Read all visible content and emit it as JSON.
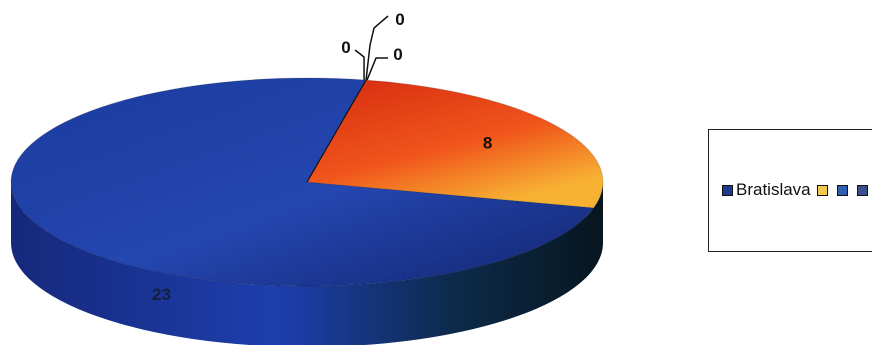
{
  "chart_data": {
    "type": "pie",
    "style": "3d",
    "categories": [
      "Bratislava",
      "",
      "",
      ""
    ],
    "values": [
      23,
      8,
      0,
      0
    ],
    "data_labels": [
      "23",
      "8",
      "0",
      "0"
    ],
    "extra_zero_label": "0",
    "colors": [
      "#1f3a8a",
      "#e8421a",
      "#f2c94c",
      "#2f5fb0"
    ],
    "legend": {
      "placement": "right",
      "entries": [
        {
          "label": "Bratislava",
          "color": "#1f3a8a"
        },
        {
          "label": "",
          "color": "#f2c94c"
        },
        {
          "label": "",
          "color": "#2f5fb0"
        },
        {
          "label": "",
          "color": "#3a4f8c"
        }
      ]
    }
  }
}
